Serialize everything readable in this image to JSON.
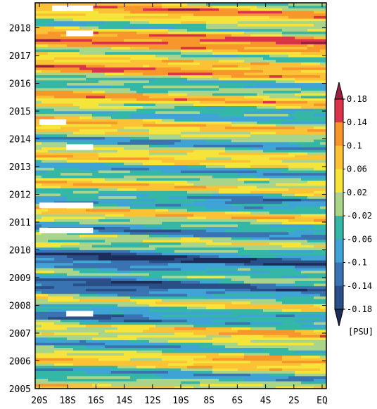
{
  "chart_data": {
    "type": "heatmap",
    "title": "",
    "xlabel": "",
    "ylabel": "",
    "x_categories": [
      "20S",
      "18S",
      "16S",
      "14S",
      "12S",
      "10S",
      "8S",
      "6S",
      "4S",
      "2S",
      "EQ"
    ],
    "x_values": [
      -20,
      -18,
      -16,
      -14,
      -12,
      -10,
      -8,
      -6,
      -4,
      -2,
      0
    ],
    "y_tick_labels": [
      "2005",
      "2006",
      "2007",
      "2008",
      "2009",
      "2010",
      "2011",
      "2012",
      "2013",
      "2014",
      "2015",
      "2016",
      "2017",
      "2018"
    ],
    "y_values": [
      2005,
      2006,
      2007,
      2008,
      2009,
      2010,
      2011,
      2012,
      2013,
      2014,
      2015,
      2016,
      2017,
      2018
    ],
    "xlim": [
      -20.3,
      0.3
    ],
    "ylim": [
      2005,
      2018.9
    ],
    "colorbar": {
      "unit": "[PSU]",
      "levels": [
        -0.18,
        -0.14,
        -0.1,
        -0.06,
        -0.02,
        0.02,
        0.06,
        0.1,
        0.14,
        0.18
      ],
      "labels": [
        "0.18",
        "0.14",
        "0.1",
        "0.06",
        "0.02",
        "-0.02",
        "-0.06",
        "-0.1",
        "-0.14",
        "-0.18"
      ],
      "colors": [
        "#1d2d5a",
        "#2a4f86",
        "#3a73b2",
        "#3fa3d6",
        "#34b7a6",
        "#a8d58a",
        "#f6e43a",
        "#fcc235",
        "#f7962b",
        "#d9344a",
        "#9c1f3f"
      ]
    },
    "missing_data": [
      {
        "year": 2018.7,
        "x_from": -19.1,
        "x_to": -16.2
      },
      {
        "year": 2017.8,
        "x_from": -18.1,
        "x_to": -16.2
      },
      {
        "year": 2014.6,
        "x_from": -20.0,
        "x_to": -18.1
      },
      {
        "year": 2013.7,
        "x_from": -18.1,
        "x_to": -16.2
      },
      {
        "year": 2011.6,
        "x_from": -20.0,
        "x_to": -16.2
      },
      {
        "year": 2010.7,
        "x_from": -20.0,
        "x_to": -16.2
      },
      {
        "year": 2007.7,
        "x_from": -18.1,
        "x_to": -16.2
      }
    ],
    "grid": false
  },
  "colors": {
    "frame": "#000000",
    "missing": "#ffffff"
  }
}
